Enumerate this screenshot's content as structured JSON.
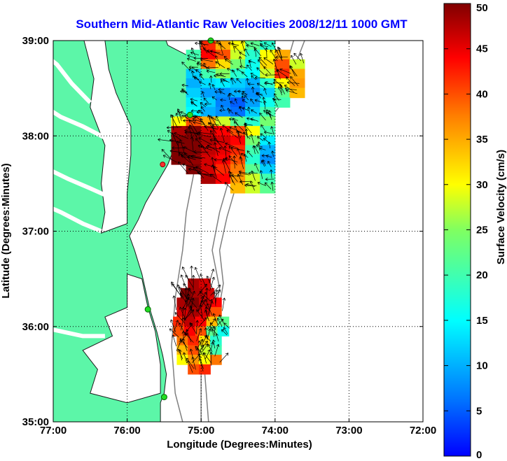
{
  "chart_data": {
    "type": "heatmap",
    "title": "Southern Mid-Atlantic Raw Velocities 2008/12/11 1000 GMT",
    "xlabel": "Longitude (Degrees:Minutes)",
    "ylabel": "Latitude (Degrees:Minutes)",
    "colorbar_label": "Surface Velocity (cm/s)",
    "xlim": [
      -77,
      -72
    ],
    "ylim": [
      35,
      39
    ],
    "x_ticks": [
      -77,
      -76,
      -75,
      -74,
      -73,
      -72
    ],
    "x_tick_labels": [
      "77:00",
      "76:00",
      "75:00",
      "74:00",
      "73:00",
      "72:00"
    ],
    "y_ticks": [
      35,
      36,
      37,
      38,
      39
    ],
    "y_tick_labels": [
      "35:00",
      "36:00",
      "37:00",
      "38:00",
      "39:00"
    ],
    "colorbar_range": [
      0,
      50
    ],
    "colorbar_ticks": [
      0,
      5,
      10,
      15,
      20,
      25,
      30,
      35,
      40,
      45,
      50
    ],
    "colorbar_tick_labels": [
      "0",
      "5",
      "10",
      "15",
      "20",
      "25",
      "30",
      "35",
      "40",
      "45",
      "50"
    ],
    "grid": "dotted",
    "colormap": "jet",
    "colors": {
      "land": "#5cf6a8",
      "title": "#0000ff",
      "bathymetry": "#808080",
      "sites_active": "#22dd22",
      "site_inactive": "#ff3030"
    },
    "regions": [
      {
        "name": "north",
        "cells": [
          [
            -74.9,
            38.95,
            42
          ],
          [
            -74.7,
            38.95,
            35
          ],
          [
            -74.5,
            38.95,
            30
          ],
          [
            -74.3,
            38.95,
            22
          ],
          [
            -74.1,
            38.95,
            18
          ],
          [
            -75.1,
            38.85,
            20
          ],
          [
            -74.9,
            38.85,
            44
          ],
          [
            -74.7,
            38.85,
            40
          ],
          [
            -74.5,
            38.85,
            28
          ],
          [
            -74.3,
            38.85,
            18
          ],
          [
            -74.1,
            38.85,
            30
          ],
          [
            -73.9,
            38.85,
            35
          ],
          [
            -75.1,
            38.75,
            22
          ],
          [
            -74.9,
            38.75,
            38
          ],
          [
            -74.7,
            38.75,
            32
          ],
          [
            -74.5,
            38.75,
            24
          ],
          [
            -74.3,
            38.75,
            16
          ],
          [
            -74.1,
            38.75,
            32
          ],
          [
            -73.9,
            38.75,
            40
          ],
          [
            -73.7,
            38.75,
            28
          ],
          [
            -75.1,
            38.65,
            12
          ],
          [
            -74.9,
            38.65,
            20
          ],
          [
            -74.7,
            38.65,
            25
          ],
          [
            -74.5,
            38.65,
            18
          ],
          [
            -74.3,
            38.65,
            15
          ],
          [
            -74.1,
            38.65,
            28
          ],
          [
            -73.9,
            38.65,
            42
          ],
          [
            -73.7,
            38.65,
            35
          ],
          [
            -75.1,
            38.55,
            10
          ],
          [
            -74.9,
            38.55,
            13
          ],
          [
            -74.7,
            38.55,
            14
          ],
          [
            -74.5,
            38.55,
            12
          ],
          [
            -74.3,
            38.55,
            10
          ],
          [
            -74.1,
            38.55,
            18
          ],
          [
            -73.9,
            38.55,
            30
          ],
          [
            -73.7,
            38.55,
            36
          ],
          [
            -75.1,
            38.45,
            12
          ],
          [
            -74.9,
            38.45,
            9
          ],
          [
            -74.7,
            38.45,
            8
          ],
          [
            -74.5,
            38.45,
            10
          ],
          [
            -74.3,
            38.45,
            8
          ],
          [
            -74.1,
            38.45,
            12
          ],
          [
            -73.9,
            38.45,
            22
          ],
          [
            -73.7,
            38.45,
            34
          ],
          [
            -75.1,
            38.35,
            14
          ],
          [
            -74.9,
            38.35,
            12
          ],
          [
            -74.7,
            38.35,
            7
          ],
          [
            -74.5,
            38.35,
            5
          ],
          [
            -74.3,
            38.35,
            9
          ],
          [
            -74.1,
            38.35,
            16
          ],
          [
            -73.9,
            38.35,
            20
          ],
          [
            -75.1,
            38.25,
            15
          ],
          [
            -74.9,
            38.25,
            10
          ],
          [
            -74.7,
            38.25,
            8
          ],
          [
            -74.5,
            38.25,
            6
          ],
          [
            -74.3,
            38.25,
            12
          ],
          [
            -74.1,
            38.25,
            20
          ],
          [
            -75.3,
            38.15,
            30
          ],
          [
            -75.1,
            38.15,
            40
          ],
          [
            -74.9,
            38.15,
            35
          ],
          [
            -74.7,
            38.15,
            28
          ],
          [
            -74.5,
            38.15,
            22
          ],
          [
            -74.3,
            38.15,
            18
          ],
          [
            -74.1,
            38.15,
            24
          ],
          [
            -75.3,
            38.05,
            48
          ],
          [
            -75.1,
            38.05,
            50
          ],
          [
            -74.9,
            38.05,
            46
          ],
          [
            -74.7,
            38.05,
            44
          ],
          [
            -74.5,
            38.05,
            40
          ],
          [
            -74.3,
            38.05,
            30
          ],
          [
            -74.1,
            38.05,
            20
          ],
          [
            -75.3,
            37.95,
            50
          ],
          [
            -75.1,
            37.95,
            50
          ],
          [
            -74.9,
            37.95,
            48
          ],
          [
            -74.7,
            37.95,
            46
          ],
          [
            -74.5,
            37.95,
            44
          ],
          [
            -74.3,
            37.95,
            24
          ],
          [
            -74.1,
            37.95,
            14
          ],
          [
            -75.3,
            37.85,
            50
          ],
          [
            -75.1,
            37.85,
            50
          ],
          [
            -74.9,
            37.85,
            47
          ],
          [
            -74.7,
            37.85,
            45
          ],
          [
            -74.5,
            37.85,
            42
          ],
          [
            -74.3,
            37.85,
            20
          ],
          [
            -74.1,
            37.85,
            10
          ],
          [
            -75.3,
            37.75,
            50
          ],
          [
            -75.1,
            37.75,
            49
          ],
          [
            -74.9,
            37.75,
            46
          ],
          [
            -74.7,
            37.75,
            44
          ],
          [
            -74.5,
            37.75,
            40
          ],
          [
            -74.3,
            37.75,
            18
          ],
          [
            -74.1,
            37.75,
            8
          ],
          [
            -75.1,
            37.65,
            50
          ],
          [
            -74.9,
            37.65,
            46
          ],
          [
            -74.7,
            37.65,
            42
          ],
          [
            -74.5,
            37.65,
            38
          ],
          [
            -74.3,
            37.65,
            22
          ],
          [
            -74.1,
            37.65,
            12
          ],
          [
            -74.9,
            37.55,
            48
          ],
          [
            -74.7,
            37.55,
            44
          ],
          [
            -74.5,
            37.55,
            36
          ],
          [
            -74.3,
            37.55,
            28
          ],
          [
            -74.1,
            37.55,
            20
          ],
          [
            -74.5,
            37.45,
            34
          ],
          [
            -74.3,
            37.45,
            28
          ],
          [
            -74.1,
            37.45,
            22
          ]
        ]
      },
      {
        "name": "south",
        "cells": [
          [
            -75.1,
            36.45,
            48
          ],
          [
            -74.95,
            36.45,
            46
          ],
          [
            -75.2,
            36.35,
            50
          ],
          [
            -75.05,
            36.35,
            48
          ],
          [
            -74.9,
            36.35,
            46
          ],
          [
            -75.25,
            36.25,
            48
          ],
          [
            -75.1,
            36.25,
            50
          ],
          [
            -74.95,
            36.25,
            47
          ],
          [
            -74.8,
            36.25,
            44
          ],
          [
            -75.25,
            36.15,
            46
          ],
          [
            -75.1,
            36.15,
            48
          ],
          [
            -74.95,
            36.15,
            46
          ],
          [
            -74.8,
            36.15,
            40
          ],
          [
            -75.3,
            36.05,
            42
          ],
          [
            -75.15,
            36.05,
            47
          ],
          [
            -75.0,
            36.05,
            44
          ],
          [
            -74.85,
            36.05,
            34
          ],
          [
            -74.7,
            36.05,
            22
          ],
          [
            -75.3,
            35.95,
            40
          ],
          [
            -75.15,
            35.95,
            44
          ],
          [
            -75.0,
            35.95,
            40
          ],
          [
            -74.85,
            35.95,
            22
          ],
          [
            -74.7,
            35.95,
            16
          ],
          [
            -75.25,
            35.85,
            38
          ],
          [
            -75.1,
            35.85,
            42
          ],
          [
            -74.95,
            35.85,
            32
          ],
          [
            -74.8,
            35.85,
            18
          ],
          [
            -75.25,
            35.75,
            34
          ],
          [
            -75.1,
            35.75,
            40
          ],
          [
            -74.95,
            35.75,
            28
          ],
          [
            -74.8,
            35.75,
            20
          ],
          [
            -75.25,
            35.65,
            30
          ],
          [
            -75.1,
            35.65,
            36
          ],
          [
            -74.95,
            35.65,
            30
          ],
          [
            -74.8,
            35.65,
            38
          ],
          [
            -75.1,
            35.55,
            40
          ],
          [
            -74.95,
            35.55,
            42
          ]
        ]
      }
    ]
  }
}
